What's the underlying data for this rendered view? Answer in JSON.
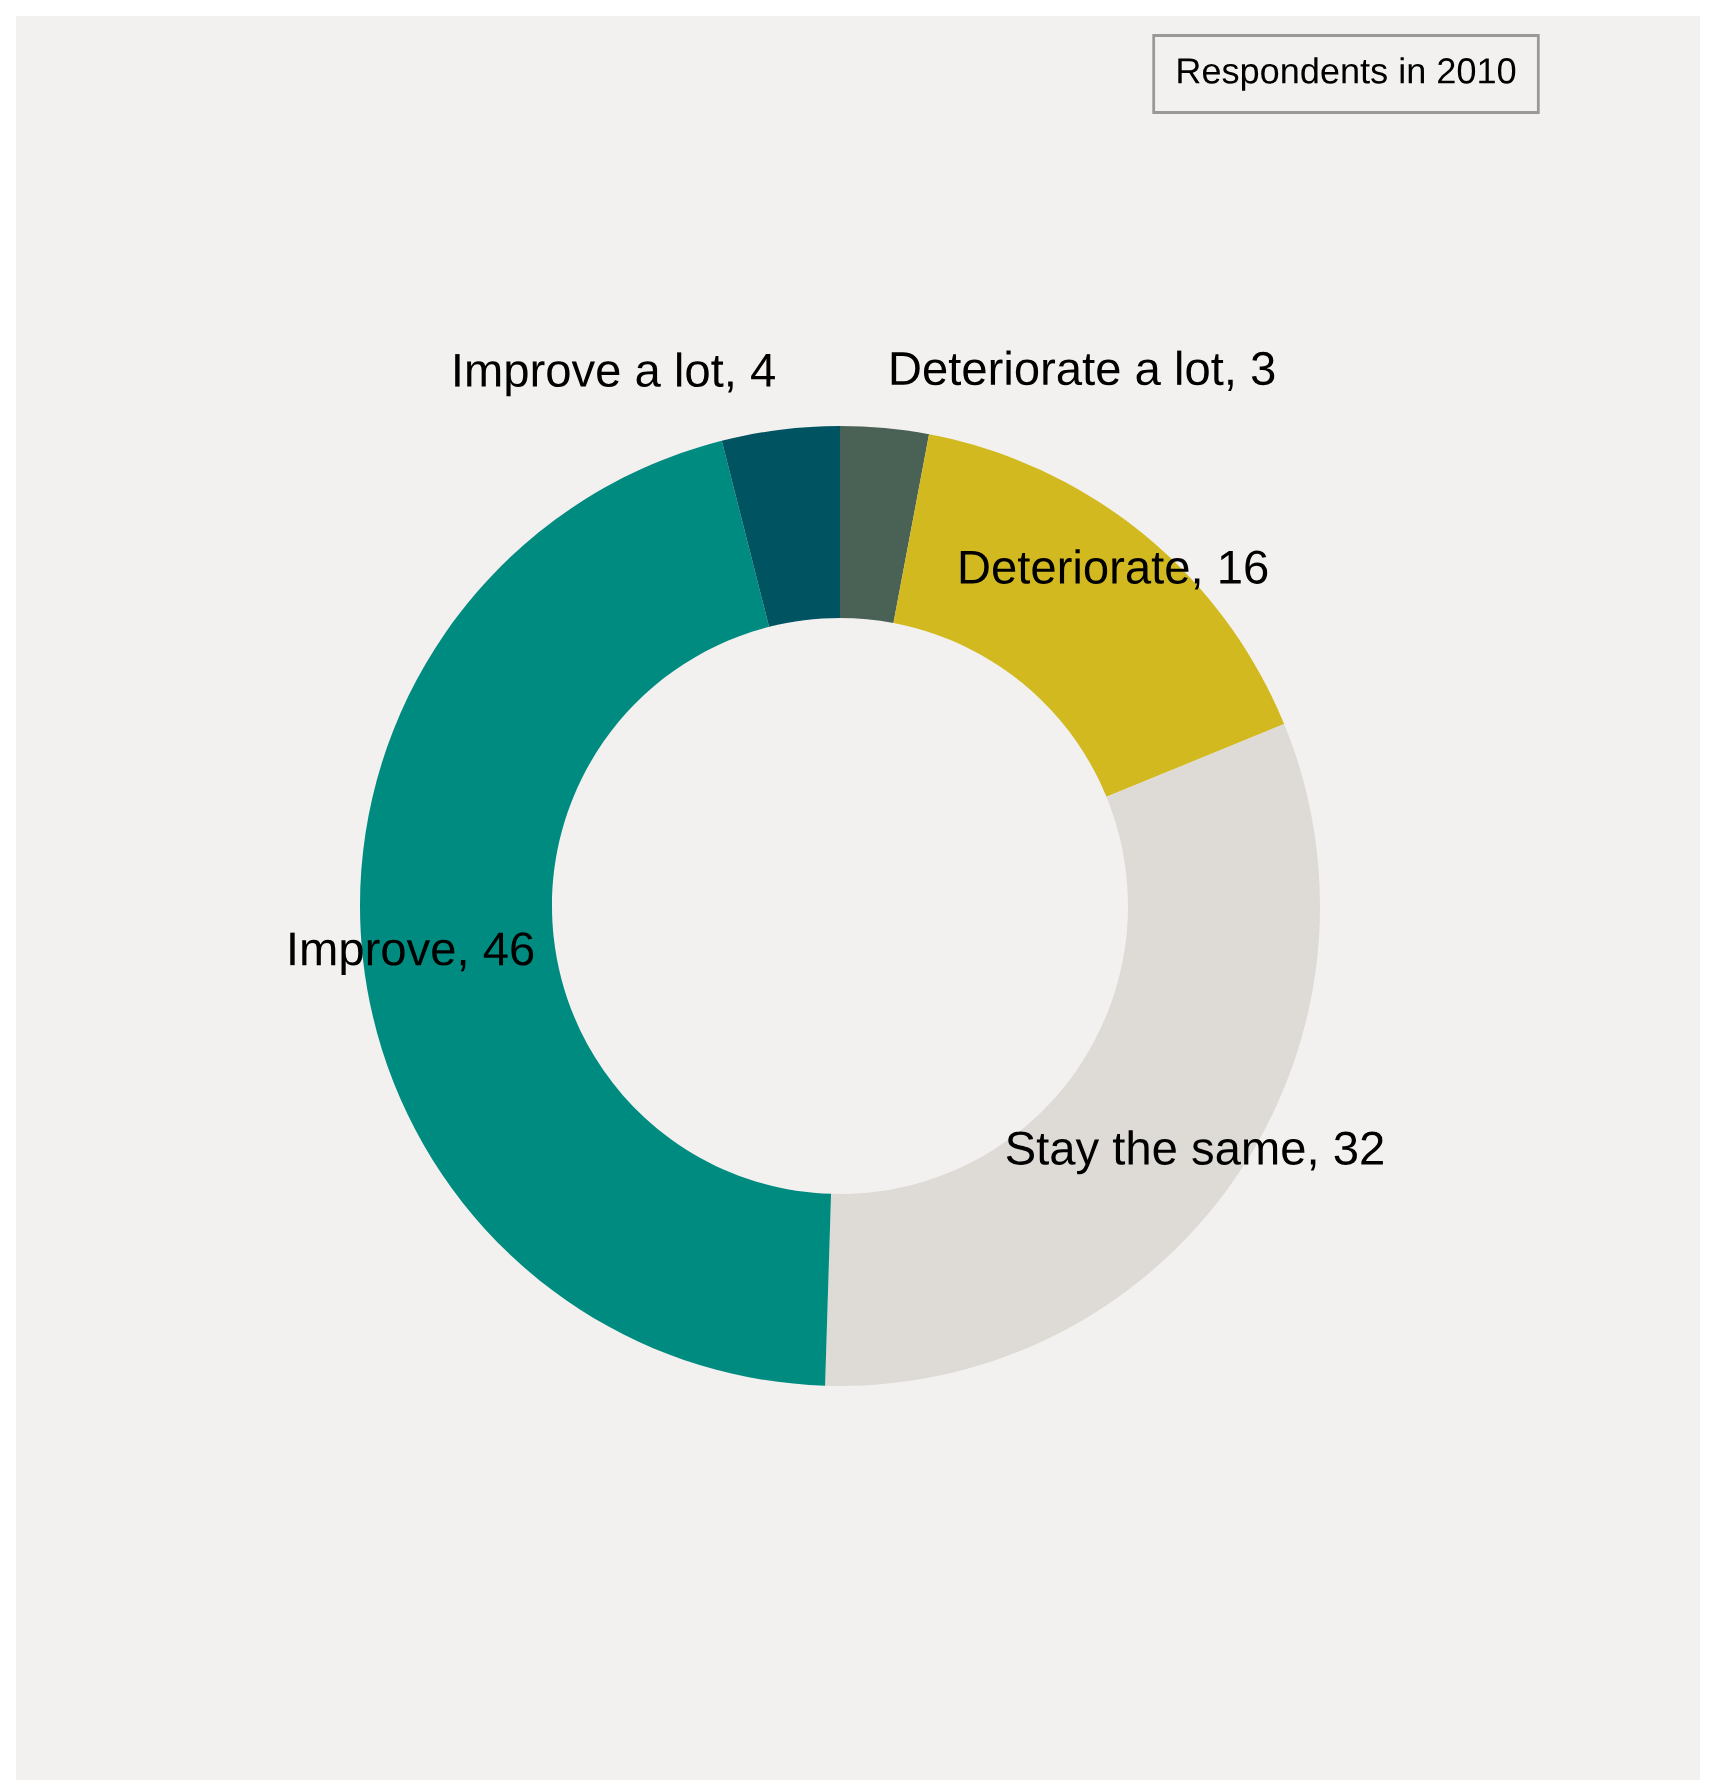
{
  "chart_data": {
    "type": "donut",
    "title": "Respondents in 2010",
    "categories": [
      null,
      null,
      null,
      null,
      null
    ],
    "values": [
      3,
      16,
      32,
      46,
      4
    ],
    "colors": [
      "#4a6156",
      "#d2b920",
      "#dedad6",
      "#008b80",
      "#005462"
    ],
    "value_labels": [
      "Deteriorate a lot, 3",
      "Deteriorate, 16",
      "Stay the same, 32",
      "Improve, 46",
      "Improve a lot, 4"
    ],
    "legend": false
  }
}
